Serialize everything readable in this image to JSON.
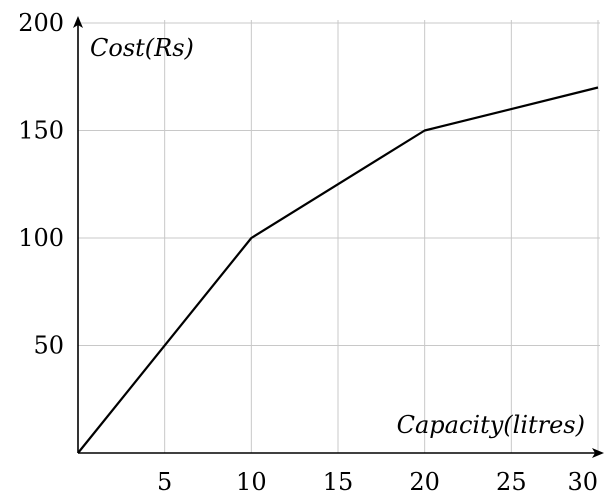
{
  "chart_data": {
    "type": "line",
    "title": "",
    "xlabel": "Capacity(litres)",
    "ylabel": "Cost(Rs)",
    "xlim": [
      0,
      30
    ],
    "ylim": [
      0,
      200
    ],
    "grid": true,
    "x_ticks": [
      5,
      10,
      15,
      20,
      25,
      30
    ],
    "x_tick_labels": [
      "5",
      "10",
      "15",
      "20",
      "25",
      "30"
    ],
    "y_ticks": [
      50,
      100,
      150,
      200
    ],
    "y_tick_labels": [
      "50",
      "100",
      "150",
      "200"
    ],
    "series": [
      {
        "x": [
          0,
          10,
          20,
          30
        ],
        "y": [
          0,
          100,
          150,
          170
        ]
      }
    ]
  }
}
